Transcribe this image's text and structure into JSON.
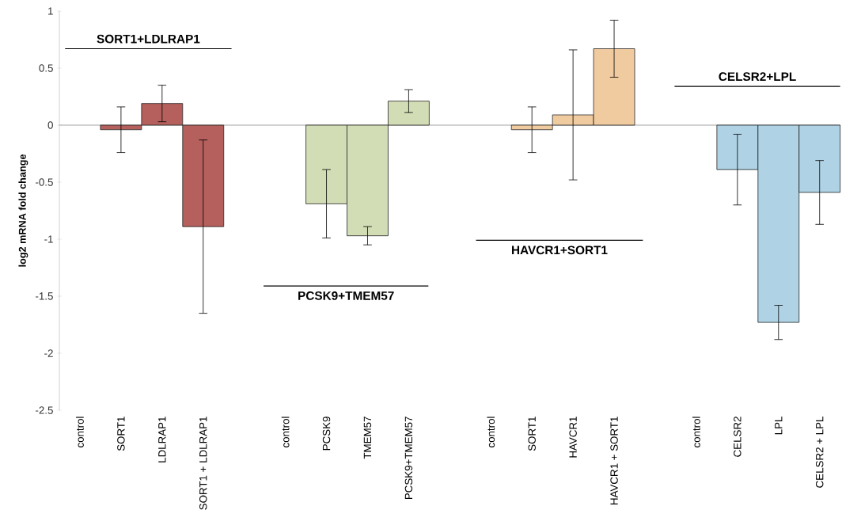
{
  "chart_data": {
    "type": "bar",
    "ylabel": "log2 mRNA fold change",
    "categories": [
      "control",
      "SORT1",
      "LDLRAP1",
      "SORT1 + LDLRAP1",
      null,
      "control",
      "PCSK9",
      "TMEM57",
      "PCSK9+TMEM57",
      null,
      "control",
      "SORT1",
      "HAVCR1",
      "HAVCR1 + SORT1",
      null,
      "control",
      "CELSR2",
      "LPL",
      "CELSR2 + LPL"
    ],
    "values": [
      0,
      -0.04,
      0.19,
      -0.89,
      null,
      0,
      -0.69,
      -0.97,
      0.21,
      null,
      0,
      -0.04,
      0.09,
      0.67,
      null,
      0,
      -0.39,
      -1.73,
      -0.59
    ],
    "errors": [
      null,
      0.2,
      0.16,
      0.76,
      null,
      null,
      0.3,
      0.08,
      0.1,
      null,
      null,
      0.2,
      0.57,
      0.25,
      null,
      null,
      0.31,
      0.15,
      0.28
    ],
    "colors": [
      "#b5605c",
      "#b5605c",
      "#b5605c",
      "#b5605c",
      null,
      "#d3ddb5",
      "#d3ddb5",
      "#d3ddb5",
      "#d3ddb5",
      null,
      "#f1cba0",
      "#f1cba0",
      "#f1cba0",
      "#f1cba0",
      null,
      "#afd3e5",
      "#afd3e5",
      "#afd3e5",
      "#afd3e5"
    ],
    "ylim": [
      -2.5,
      1
    ],
    "yticks": [
      -2.5,
      -2,
      -1.5,
      -1,
      -0.5,
      0,
      0.5,
      1
    ],
    "annotations": [
      "SORT1+LDLRAP1",
      "PCSK9+TMEM57",
      "HAVCR1+SORT1",
      "CELSR2+LPL"
    ]
  }
}
